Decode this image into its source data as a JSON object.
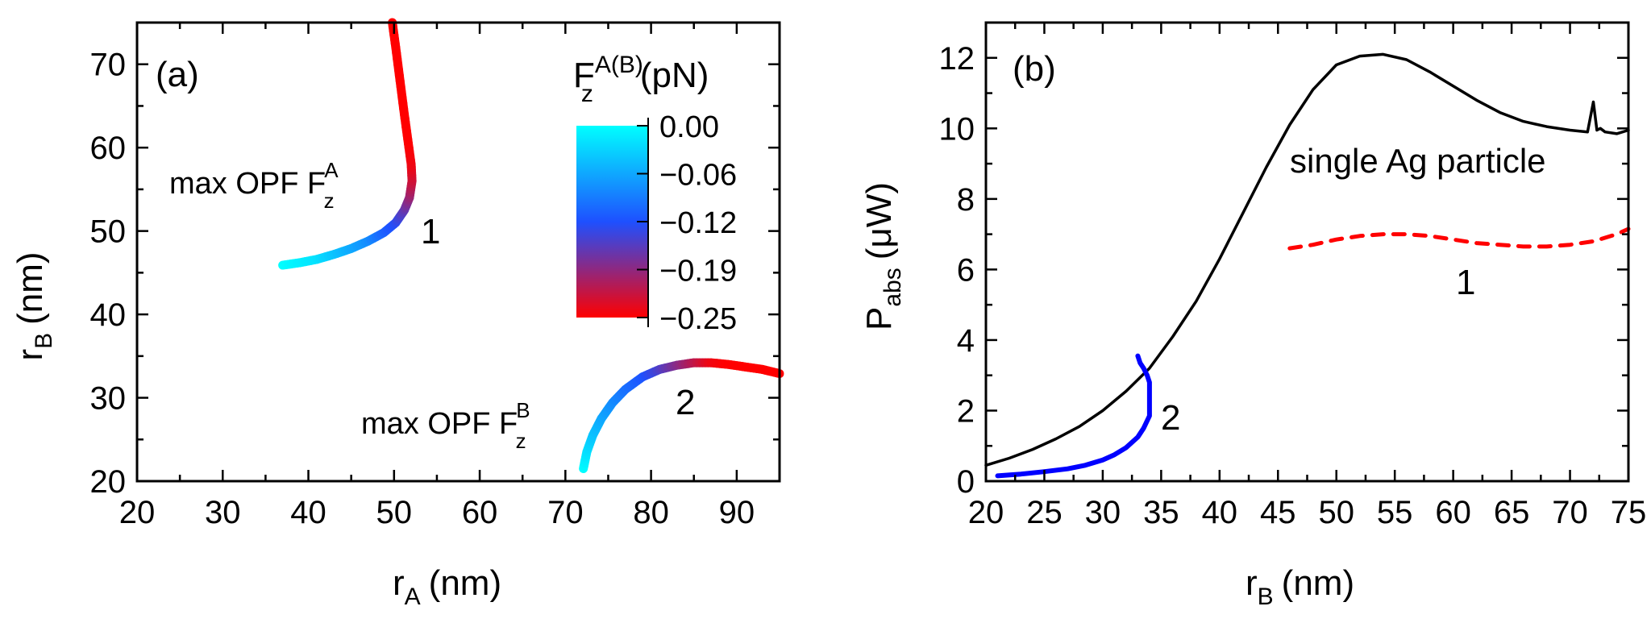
{
  "chart_data": [
    {
      "type": "line",
      "panel_label": "(a)",
      "xlabel": "r_A (nm)",
      "xlabel_main": "r",
      "xlabel_sub": "A",
      "xlabel_unit": "(nm)",
      "ylabel_main": "r",
      "ylabel_sub": "B",
      "ylabel_unit": "(nm)",
      "xlim": [
        20,
        95
      ],
      "ylim": [
        20,
        75
      ],
      "xticks": [
        20,
        30,
        40,
        50,
        60,
        70,
        80,
        90
      ],
      "yticks": [
        20,
        30,
        40,
        50,
        60,
        70
      ],
      "colorbar": {
        "title_main": "F",
        "title_sub": "z",
        "title_sup": "A(B)",
        "title_unit": "(pN)",
        "range": [
          -0.25,
          0.0
        ],
        "ticks": [
          "0.00",
          "−0.06",
          "−0.12",
          "−0.19",
          "−0.25"
        ],
        "colors": [
          "#00ffff",
          "#1e50ff",
          "#ff0000"
        ]
      },
      "annotations": [
        {
          "text_main": "max OPF F",
          "sub": "z",
          "sup": "A",
          "x": 34.5,
          "y": 54.5
        },
        {
          "text_main": "max OPF F",
          "sub": "z",
          "sup": "B",
          "x": 61.5,
          "y": 26.5
        },
        {
          "text": "1",
          "x": 54.5,
          "y": 47.5
        },
        {
          "text": "2",
          "x": 83.5,
          "y": 29.5
        }
      ],
      "series": [
        {
          "name": "1",
          "points": [
            [
              37.0,
              45.9,
              0.0
            ],
            [
              39.0,
              46.2,
              -0.01
            ],
            [
              41.0,
              46.6,
              -0.02
            ],
            [
              43.0,
              47.2,
              -0.04
            ],
            [
              45.0,
              47.9,
              -0.06
            ],
            [
              47.0,
              48.8,
              -0.08
            ],
            [
              48.8,
              49.8,
              -0.11
            ],
            [
              50.2,
              51.0,
              -0.13
            ],
            [
              51.2,
              52.5,
              -0.16
            ],
            [
              51.8,
              54.0,
              -0.19
            ],
            [
              52.1,
              56.0,
              -0.22
            ],
            [
              52.0,
              58.0,
              -0.24
            ],
            [
              51.6,
              61.0,
              -0.25
            ],
            [
              51.2,
              64.0,
              -0.25
            ],
            [
              50.7,
              68.0,
              -0.25
            ],
            [
              50.2,
              72.0,
              -0.25
            ],
            [
              49.8,
              75.0,
              -0.25
            ]
          ]
        },
        {
          "name": "2",
          "points": [
            [
              72.1,
              21.5,
              0.0
            ],
            [
              72.5,
              23.5,
              -0.02
            ],
            [
              73.2,
              25.5,
              -0.04
            ],
            [
              74.2,
              27.5,
              -0.06
            ],
            [
              75.5,
              29.4,
              -0.08
            ],
            [
              77.0,
              31.0,
              -0.1
            ],
            [
              79.0,
              32.5,
              -0.12
            ],
            [
              81.0,
              33.4,
              -0.15
            ],
            [
              83.0,
              33.9,
              -0.18
            ],
            [
              85.0,
              34.2,
              -0.21
            ],
            [
              87.0,
              34.2,
              -0.24
            ],
            [
              89.0,
              34.0,
              -0.25
            ],
            [
              91.0,
              33.7,
              -0.25
            ],
            [
              93.0,
              33.4,
              -0.25
            ],
            [
              95.0,
              32.9,
              -0.25
            ]
          ]
        }
      ]
    },
    {
      "type": "line",
      "panel_label": "(b)",
      "xlabel_main": "r",
      "xlabel_sub": "B",
      "xlabel_unit": "(nm)",
      "ylabel_main": "P",
      "ylabel_sub": "abs",
      "ylabel_unit": "(μW)",
      "xlim": [
        20,
        75
      ],
      "ylim": [
        0,
        13
      ],
      "xticks": [
        20,
        25,
        30,
        35,
        40,
        45,
        50,
        55,
        60,
        65,
        70,
        75
      ],
      "yticks": [
        0,
        2,
        4,
        6,
        8,
        10,
        12
      ],
      "annotations": [
        {
          "text": "single Ag particle",
          "x": 61.5,
          "y": 9.2
        },
        {
          "text": "1",
          "x": 62.5,
          "y": 5.3
        },
        {
          "text": "2",
          "x": 36.5,
          "y": 1.4
        }
      ],
      "series": [
        {
          "name": "single Ag particle",
          "color": "#000000",
          "style": "solid",
          "x": [
            20,
            22,
            24,
            26,
            28,
            30,
            32,
            34,
            36,
            38,
            40,
            42,
            44,
            46,
            48,
            50,
            52,
            54,
            56,
            58,
            60,
            62,
            64,
            66,
            68,
            70,
            71.5,
            72,
            72.3,
            72.6,
            73,
            74,
            75
          ],
          "y": [
            0.45,
            0.65,
            0.9,
            1.2,
            1.55,
            2.0,
            2.55,
            3.2,
            4.1,
            5.1,
            6.3,
            7.6,
            8.9,
            10.1,
            11.1,
            11.8,
            12.05,
            12.1,
            11.95,
            11.6,
            11.2,
            10.8,
            10.45,
            10.2,
            10.05,
            9.95,
            9.9,
            10.75,
            9.95,
            10.0,
            9.9,
            9.85,
            9.95
          ]
        },
        {
          "name": "1",
          "color": "#ff0000",
          "style": "dashed",
          "x": [
            46,
            48,
            50,
            52,
            54,
            56,
            58,
            60,
            62,
            64,
            66,
            68,
            70,
            72,
            74,
            75
          ],
          "y": [
            6.6,
            6.7,
            6.85,
            6.95,
            7.0,
            7.0,
            6.95,
            6.85,
            6.75,
            6.7,
            6.65,
            6.65,
            6.7,
            6.8,
            7.0,
            7.15
          ]
        },
        {
          "name": "2",
          "color": "#0000ff",
          "style": "solid",
          "x": [
            21,
            23,
            25,
            27,
            28.5,
            30,
            31,
            32,
            33,
            33.5,
            34,
            34,
            34,
            33.8,
            33.5,
            33.2,
            33.0
          ],
          "y": [
            0.15,
            0.2,
            0.27,
            0.35,
            0.45,
            0.6,
            0.75,
            0.95,
            1.25,
            1.5,
            1.85,
            2.3,
            2.8,
            3.0,
            3.2,
            3.35,
            3.55
          ]
        }
      ]
    }
  ]
}
